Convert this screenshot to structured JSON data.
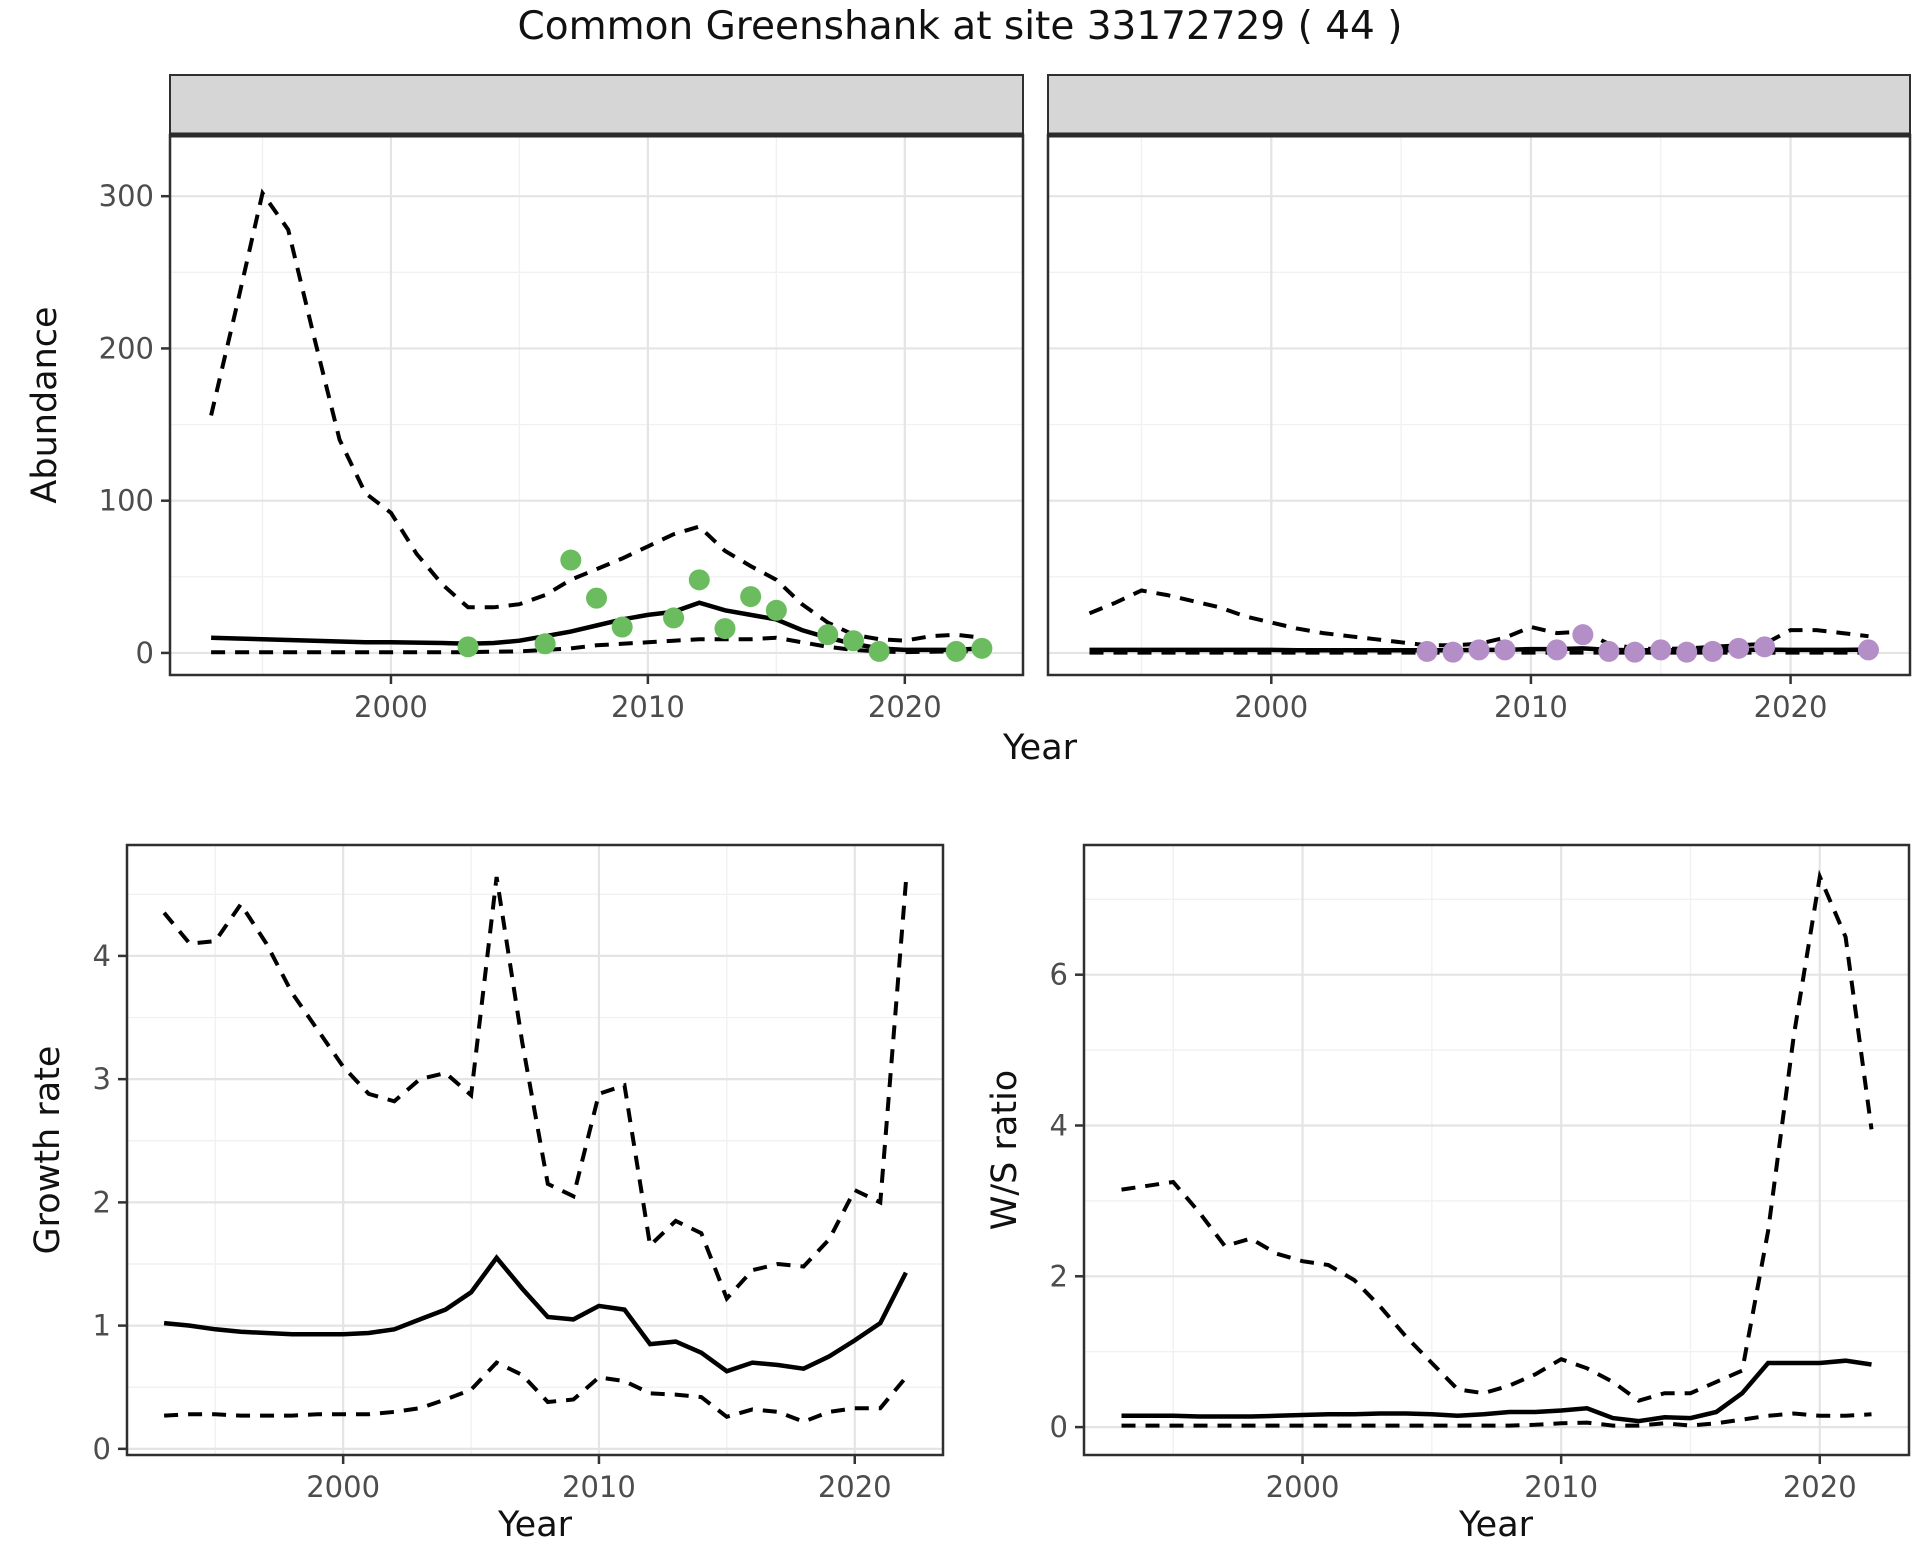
{
  "title": "Common Greenshank at site 33172729 ( 44 )",
  "axis": {
    "year_label": "Year",
    "year_label_bottom_left": "Year",
    "year_label_bottom_right": "Year"
  },
  "colors": {
    "summer_point": "#6abc5f",
    "winter_point": "#b48ec6",
    "line": "#000000",
    "strip_bg": "#d6d6d6",
    "panel_border": "#2f2f2f",
    "grid_major": "#e4e4e4",
    "grid_minor": "#f1f1f1",
    "tick_label": "#4d4d4d",
    "background": "#ffffff"
  },
  "chart_data": [
    {
      "id": "abundance-summer",
      "type": "line",
      "facet": "summer",
      "ylabel": "Abundance",
      "xlabel": "Year",
      "x_ticks": [
        2000,
        2010,
        2020
      ],
      "y_ticks": [
        0,
        100,
        200,
        300
      ],
      "xlim": [
        1991.4,
        2024.6
      ],
      "ylim": [
        -14.5,
        340.2
      ],
      "grid": true,
      "years": [
        1993,
        1994,
        1995,
        1996,
        1997,
        1998,
        1999,
        2000,
        2001,
        2002,
        2003,
        2004,
        2005,
        2006,
        2007,
        2008,
        2009,
        2010,
        2011,
        2012,
        2013,
        2014,
        2015,
        2016,
        2017,
        2018,
        2019,
        2020,
        2021,
        2022,
        2023
      ],
      "series": [
        {
          "name": "upper_95ci",
          "style": "dashed",
          "values": [
            156,
            228,
            302,
            278,
            208,
            140,
            105,
            92,
            65,
            45,
            30,
            30,
            32,
            38,
            48,
            55,
            62,
            70,
            78,
            83,
            67,
            57,
            48,
            32,
            20,
            12,
            9,
            8,
            11,
            12,
            10
          ]
        },
        {
          "name": "median",
          "style": "solid",
          "values": [
            10,
            9.5,
            9,
            8.5,
            8,
            7.5,
            7,
            7,
            6.8,
            6.5,
            6,
            6.5,
            8,
            11,
            14,
            18,
            22,
            25,
            27,
            33,
            28,
            25,
            22,
            15,
            10,
            6,
            3,
            2,
            2,
            2,
            3
          ]
        },
        {
          "name": "lower_95ci",
          "style": "dashed",
          "values": [
            0.5,
            0.5,
            0.5,
            0.5,
            0.5,
            0.5,
            0.5,
            0.5,
            0.5,
            0.5,
            0.5,
            0.8,
            1,
            2,
            3,
            5,
            6,
            7,
            8,
            9,
            9,
            9,
            10,
            7,
            4,
            2,
            1,
            0.5,
            0.8,
            1,
            1
          ]
        }
      ],
      "points": {
        "name": "observed_counts",
        "color_key": "summer_point",
        "years": [
          2003,
          2006,
          2007,
          2008,
          2009,
          2011,
          2012,
          2013,
          2014,
          2015,
          2017,
          2018,
          2019,
          2022,
          2023
        ],
        "values": [
          4,
          6,
          61,
          36,
          17,
          23,
          48,
          16,
          37,
          28,
          12,
          8,
          1,
          1,
          3
        ]
      }
    },
    {
      "id": "abundance-winter",
      "type": "line",
      "facet": "winter",
      "ylabel": "Abundance",
      "xlabel": "Year",
      "x_ticks": [
        2000,
        2010,
        2020
      ],
      "y_ticks": [
        0,
        100,
        200,
        300
      ],
      "xlim": [
        1991.4,
        2024.6
      ],
      "ylim": [
        -14.5,
        340.2
      ],
      "grid": true,
      "years": [
        1993,
        1994,
        1995,
        1996,
        1997,
        1998,
        1999,
        2000,
        2001,
        2002,
        2003,
        2004,
        2005,
        2006,
        2007,
        2008,
        2009,
        2010,
        2011,
        2012,
        2013,
        2014,
        2015,
        2016,
        2017,
        2018,
        2019,
        2020,
        2021,
        2022,
        2023
      ],
      "series": [
        {
          "name": "upper_95ci",
          "style": "dashed",
          "values": [
            26,
            33,
            41,
            38,
            34,
            30,
            24,
            20,
            16,
            13,
            11,
            9,
            7,
            5,
            5,
            6,
            10,
            17,
            13,
            14,
            6,
            3,
            2.5,
            3,
            4,
            5,
            6,
            15,
            15,
            13,
            11
          ]
        },
        {
          "name": "median",
          "style": "solid",
          "values": [
            2,
            2,
            2,
            2,
            2,
            2,
            2,
            2,
            1.8,
            1.8,
            1.8,
            1.8,
            1.8,
            1.8,
            1.8,
            2,
            2,
            2.5,
            2.5,
            3,
            2,
            1.8,
            1.8,
            1.8,
            1.8,
            2,
            2.2,
            2,
            2,
            2,
            2.2
          ]
        },
        {
          "name": "lower_95ci",
          "style": "dashed",
          "values": [
            0.2,
            0.2,
            0.2,
            0.2,
            0.2,
            0.2,
            0.2,
            0.2,
            0.2,
            0.2,
            0.2,
            0.2,
            0.2,
            0.2,
            0.2,
            0.2,
            0.2,
            0.2,
            0.2,
            0.2,
            0.2,
            0.2,
            0.2,
            0.2,
            0.2,
            0.2,
            0.2,
            0.2,
            0.2,
            0.2,
            0.2
          ]
        }
      ],
      "points": {
        "name": "observed_counts",
        "color_key": "winter_point",
        "years": [
          2006,
          2007,
          2008,
          2009,
          2011,
          2012,
          2013,
          2014,
          2015,
          2016,
          2017,
          2018,
          2019,
          2023
        ],
        "values": [
          1,
          0.5,
          2,
          2,
          2,
          12,
          1,
          0.5,
          2,
          0.5,
          1,
          3,
          4,
          2
        ]
      }
    },
    {
      "id": "growth-rate",
      "type": "line",
      "facet": null,
      "ylabel": "Growth rate",
      "xlabel": "Year",
      "x_ticks": [
        2000,
        2010,
        2020
      ],
      "y_ticks": [
        0,
        1,
        2,
        3,
        4
      ],
      "xlim": [
        1991.55,
        2023.45
      ],
      "ylim": [
        -0.05,
        4.9
      ],
      "grid": true,
      "years": [
        1993,
        1994,
        1995,
        1996,
        1997,
        1998,
        1999,
        2000,
        2001,
        2002,
        2003,
        2004,
        2005,
        2006,
        2007,
        2008,
        2009,
        2010,
        2011,
        2012,
        2013,
        2014,
        2015,
        2016,
        2017,
        2018,
        2019,
        2020,
        2021,
        2022
      ],
      "series": [
        {
          "name": "upper_95ci",
          "style": "dashed",
          "values": [
            4.35,
            4.1,
            4.12,
            4.42,
            4.1,
            3.7,
            3.4,
            3.1,
            2.88,
            2.82,
            3.0,
            3.05,
            2.87,
            4.64,
            3.3,
            2.15,
            2.05,
            2.88,
            2.95,
            1.65,
            1.85,
            1.75,
            1.22,
            1.45,
            1.5,
            1.48,
            1.7,
            2.1,
            2.0,
            4.6
          ]
        },
        {
          "name": "median",
          "style": "solid",
          "values": [
            1.02,
            1.0,
            0.97,
            0.95,
            0.94,
            0.93,
            0.93,
            0.93,
            0.94,
            0.97,
            1.05,
            1.13,
            1.27,
            1.55,
            1.3,
            1.07,
            1.05,
            1.16,
            1.13,
            0.85,
            0.87,
            0.78,
            0.63,
            0.7,
            0.68,
            0.65,
            0.75,
            0.88,
            1.02,
            1.43
          ]
        },
        {
          "name": "lower_95ci",
          "style": "dashed",
          "values": [
            0.27,
            0.28,
            0.28,
            0.27,
            0.27,
            0.27,
            0.28,
            0.28,
            0.28,
            0.3,
            0.33,
            0.4,
            0.48,
            0.7,
            0.6,
            0.38,
            0.4,
            0.58,
            0.55,
            0.45,
            0.44,
            0.42,
            0.26,
            0.32,
            0.3,
            0.22,
            0.3,
            0.33,
            0.33,
            0.58
          ]
        }
      ],
      "points": null
    },
    {
      "id": "ws-ratio",
      "type": "line",
      "facet": null,
      "ylabel": "W/S ratio",
      "xlabel": "Year",
      "x_ticks": [
        2000,
        2010,
        2020
      ],
      "y_ticks": [
        0,
        2,
        4,
        6
      ],
      "xlim": [
        1991.55,
        2023.45
      ],
      "ylim": [
        -0.37,
        7.72
      ],
      "grid": true,
      "years": [
        1993,
        1994,
        1995,
        1996,
        1997,
        1998,
        1999,
        2000,
        2001,
        2002,
        2003,
        2004,
        2005,
        2006,
        2007,
        2008,
        2009,
        2010,
        2011,
        2012,
        2013,
        2014,
        2015,
        2016,
        2017,
        2018,
        2019,
        2020,
        2021,
        2022
      ],
      "series": [
        {
          "name": "upper_95ci",
          "style": "dashed",
          "values": [
            3.15,
            3.2,
            3.25,
            2.85,
            2.4,
            2.5,
            2.3,
            2.2,
            2.15,
            1.95,
            1.6,
            1.2,
            0.85,
            0.5,
            0.45,
            0.55,
            0.7,
            0.9,
            0.78,
            0.6,
            0.35,
            0.45,
            0.45,
            0.6,
            0.75,
            2.6,
            5.2,
            7.3,
            6.5,
            3.95
          ]
        },
        {
          "name": "median",
          "style": "solid",
          "values": [
            0.15,
            0.15,
            0.15,
            0.14,
            0.14,
            0.14,
            0.15,
            0.16,
            0.17,
            0.17,
            0.18,
            0.18,
            0.17,
            0.15,
            0.17,
            0.2,
            0.2,
            0.22,
            0.25,
            0.12,
            0.08,
            0.13,
            0.12,
            0.2,
            0.45,
            0.85,
            0.85,
            0.85,
            0.88,
            0.83
          ]
        },
        {
          "name": "lower_95ci",
          "style": "dashed",
          "values": [
            0.02,
            0.02,
            0.02,
            0.02,
            0.02,
            0.02,
            0.02,
            0.02,
            0.02,
            0.02,
            0.02,
            0.02,
            0.02,
            0.02,
            0.02,
            0.02,
            0.03,
            0.05,
            0.06,
            0.02,
            0.02,
            0.05,
            0.02,
            0.05,
            0.1,
            0.15,
            0.18,
            0.15,
            0.15,
            0.17
          ]
        }
      ],
      "points": null
    }
  ]
}
